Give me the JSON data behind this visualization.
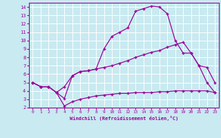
{
  "xlabel": "Windchill (Refroidissement éolien,°C)",
  "background_color": "#c8eaf0",
  "grid_color": "#ffffff",
  "line_color": "#990099",
  "xlim": [
    -0.5,
    23.5
  ],
  "ylim": [
    2,
    14.5
  ],
  "xticks": [
    0,
    1,
    2,
    3,
    4,
    5,
    6,
    7,
    8,
    9,
    10,
    11,
    12,
    13,
    14,
    15,
    16,
    17,
    18,
    19,
    20,
    21,
    22,
    23
  ],
  "yticks": [
    2,
    3,
    4,
    5,
    6,
    7,
    8,
    9,
    10,
    11,
    12,
    13,
    14
  ],
  "line1_x": [
    0,
    1,
    2,
    3,
    4,
    5,
    6,
    7,
    8,
    9,
    10,
    11,
    12,
    13,
    14,
    15,
    16,
    17,
    18,
    19,
    20,
    21,
    22,
    23
  ],
  "line1_y": [
    5.0,
    4.5,
    4.5,
    3.8,
    3.1,
    5.8,
    6.3,
    6.4,
    6.6,
    9.0,
    10.5,
    11.0,
    11.5,
    13.5,
    13.8,
    14.1,
    14.0,
    13.2,
    10.0,
    8.5,
    8.5,
    7.0,
    5.0,
    3.8
  ],
  "line2_x": [
    0,
    1,
    2,
    3,
    4,
    5,
    6,
    7,
    8,
    9,
    10,
    11,
    12,
    13,
    14,
    15,
    16,
    17,
    18,
    19,
    20,
    21,
    22,
    23
  ],
  "line2_y": [
    5.0,
    4.5,
    4.5,
    3.8,
    2.2,
    2.7,
    3.0,
    3.2,
    3.4,
    3.5,
    3.6,
    3.7,
    3.7,
    3.8,
    3.8,
    3.8,
    3.9,
    3.9,
    4.0,
    4.0,
    4.0,
    4.0,
    4.0,
    3.8
  ],
  "line3_x": [
    0,
    1,
    2,
    3,
    4,
    5,
    6,
    7,
    8,
    9,
    10,
    11,
    12,
    13,
    14,
    15,
    16,
    17,
    18,
    19,
    20,
    21,
    22,
    23
  ],
  "line3_y": [
    5.0,
    4.5,
    4.5,
    3.8,
    4.5,
    5.8,
    6.3,
    6.4,
    6.6,
    6.8,
    7.0,
    7.3,
    7.6,
    8.0,
    8.3,
    8.6,
    8.8,
    9.2,
    9.5,
    9.8,
    8.5,
    7.0,
    6.8,
    5.0
  ]
}
